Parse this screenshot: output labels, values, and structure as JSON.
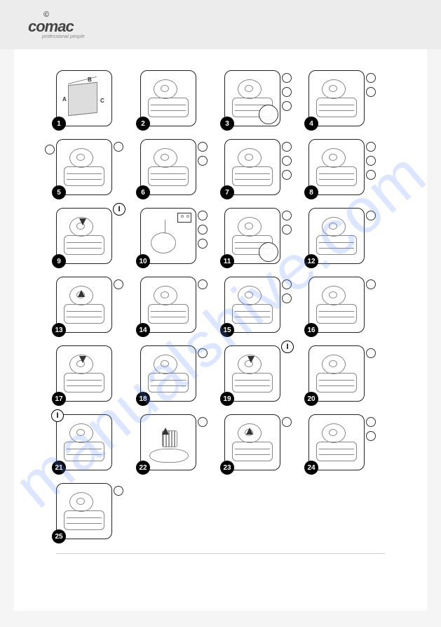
{
  "brand": {
    "mark": "©",
    "name": "comac",
    "tagline": "professional people"
  },
  "watermark": "manualshive.com",
  "rows": [
    [
      {
        "n": "1",
        "callR": 0,
        "callL": 0,
        "badge": null,
        "inset": false,
        "dimBox": true
      },
      {
        "n": "2",
        "callR": 0,
        "callL": 0,
        "badge": null,
        "inset": false
      },
      {
        "n": "3",
        "callR": 3,
        "callL": 0,
        "badge": null,
        "inset": true
      },
      {
        "n": "4",
        "callR": 2,
        "callL": 0,
        "badge": null,
        "inset": false
      }
    ],
    [
      {
        "n": "5",
        "callR": 1,
        "callL": 1,
        "badge": null,
        "inset": false
      },
      {
        "n": "6",
        "callR": 2,
        "callL": 0,
        "badge": null,
        "inset": false
      },
      {
        "n": "7",
        "callR": 3,
        "callL": 0,
        "badge": null,
        "inset": false
      },
      {
        "n": "8",
        "callR": 3,
        "callL": 0,
        "badge": null,
        "inset": false
      }
    ],
    [
      {
        "n": "9",
        "callR": 0,
        "callL": 0,
        "badge": "I",
        "inset": false,
        "arrowDown": true
      },
      {
        "n": "10",
        "callR": 3,
        "callL": 0,
        "badge": null,
        "inset": false,
        "socket": true
      },
      {
        "n": "11",
        "callR": 2,
        "callL": 0,
        "badge": null,
        "inset": true
      },
      {
        "n": "12",
        "callR": 1,
        "callL": 0,
        "badge": null,
        "inset": false
      }
    ],
    [
      {
        "n": "13",
        "callR": 1,
        "callL": 0,
        "badge": null,
        "inset": false,
        "arrowUp": true
      },
      {
        "n": "14",
        "callR": 1,
        "callL": 0,
        "badge": null,
        "inset": false
      },
      {
        "n": "15",
        "callR": 2,
        "callL": 0,
        "badge": null,
        "inset": false
      },
      {
        "n": "16",
        "callR": 1,
        "callL": 0,
        "badge": null,
        "inset": false
      }
    ],
    [
      {
        "n": "17",
        "callR": 0,
        "callL": 0,
        "badge": null,
        "inset": false,
        "arrowDown": true
      },
      {
        "n": "18",
        "callR": 1,
        "callL": 0,
        "badge": null,
        "inset": false
      },
      {
        "n": "19",
        "callR": 0,
        "callL": 0,
        "badge": "I",
        "inset": false,
        "arrowDown": true
      },
      {
        "n": "20",
        "callR": 1,
        "callL": 0,
        "badge": null,
        "inset": false
      }
    ],
    [
      {
        "n": "21",
        "callR": 0,
        "callL": 0,
        "badge": "I",
        "badgeLeft": true,
        "inset": false
      },
      {
        "n": "22",
        "callR": 1,
        "callL": 0,
        "badge": null,
        "inset": false,
        "arrowUp": true,
        "filter": true
      },
      {
        "n": "23",
        "callR": 1,
        "callL": 0,
        "badge": null,
        "inset": false,
        "arrowUp": true
      },
      {
        "n": "24",
        "callR": 2,
        "callL": 0,
        "badge": null,
        "inset": false
      }
    ],
    [
      {
        "n": "25",
        "callR": 1,
        "callL": 0,
        "badge": null,
        "inset": false
      }
    ]
  ],
  "dimLabels": {
    "a": "A",
    "b": "B",
    "c": "C"
  },
  "colors": {
    "border": "#222222",
    "sketch": "#888888",
    "bg": "#ffffff",
    "headerBg": "#ececec",
    "watermarkColor": "rgba(100,140,255,0.22)"
  }
}
